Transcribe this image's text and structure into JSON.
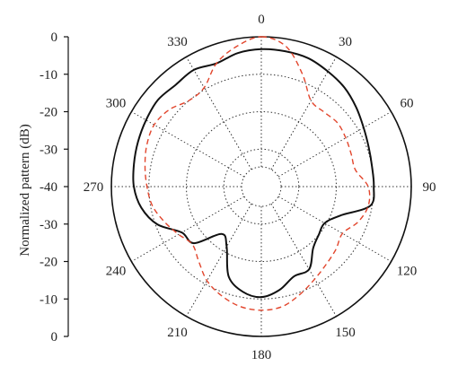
{
  "chart_data": {
    "type": "polar",
    "ylabel": "Normalized pattern (dB)",
    "r_ticks": [
      "0",
      "-10",
      "-20",
      "-30",
      "-40",
      "-30",
      "-20",
      "-10",
      "0"
    ],
    "angle_ticks": [
      "0",
      "30",
      "60",
      "90",
      "120",
      "150",
      "180",
      "210",
      "240",
      "270",
      "300",
      "330"
    ],
    "r_range_db": [
      -40,
      0
    ],
    "grid": true,
    "series": [
      {
        "color": "#111111",
        "dash": "solid",
        "points_deg_db": [
          [
            0,
            -3.3
          ],
          [
            10,
            -3.3
          ],
          [
            20,
            -3.5
          ],
          [
            30,
            -4.5
          ],
          [
            40,
            -5.5
          ],
          [
            50,
            -7.0
          ],
          [
            60,
            -8.5
          ],
          [
            70,
            -9.5
          ],
          [
            80,
            -10.0
          ],
          [
            90,
            -10.0
          ],
          [
            100,
            -10.5
          ],
          [
            110,
            -17.5
          ],
          [
            120,
            -20.5
          ],
          [
            130,
            -20.0
          ],
          [
            140,
            -18.5
          ],
          [
            150,
            -14.5
          ],
          [
            160,
            -14.5
          ],
          [
            170,
            -12.0
          ],
          [
            180,
            -10.5
          ],
          [
            190,
            -11.5
          ],
          [
            200,
            -14.5
          ],
          [
            210,
            -21.5
          ],
          [
            220,
            -23.5
          ],
          [
            230,
            -16.5
          ],
          [
            240,
            -15.5
          ],
          [
            250,
            -10.5
          ],
          [
            260,
            -7.5
          ],
          [
            270,
            -6.0
          ],
          [
            280,
            -5.5
          ],
          [
            290,
            -5.0
          ],
          [
            300,
            -4.5
          ],
          [
            310,
            -4.0
          ],
          [
            320,
            -4.5
          ],
          [
            330,
            -4.0
          ],
          [
            340,
            -5.0
          ],
          [
            350,
            -3.8
          ]
        ]
      },
      {
        "color": "#e2452c",
        "dash": "dashed",
        "points_deg_db": [
          [
            0,
            0.0
          ],
          [
            10,
            -2.0
          ],
          [
            20,
            -8.0
          ],
          [
            30,
            -13.5
          ],
          [
            40,
            -14.0
          ],
          [
            50,
            -13.5
          ],
          [
            60,
            -14.0
          ],
          [
            70,
            -14.5
          ],
          [
            80,
            -14.5
          ],
          [
            90,
            -11.5
          ],
          [
            100,
            -11.0
          ],
          [
            110,
            -12.5
          ],
          [
            120,
            -15.0
          ],
          [
            130,
            -14.0
          ],
          [
            140,
            -13.0
          ],
          [
            150,
            -11.5
          ],
          [
            160,
            -9.5
          ],
          [
            170,
            -7.5
          ],
          [
            180,
            -7.0
          ],
          [
            190,
            -7.5
          ],
          [
            200,
            -9.0
          ],
          [
            210,
            -11.0
          ],
          [
            220,
            -14.0
          ],
          [
            230,
            -16.0
          ],
          [
            240,
            -14.5
          ],
          [
            250,
            -12.5
          ],
          [
            260,
            -10.5
          ],
          [
            270,
            -9.5
          ],
          [
            280,
            -8.5
          ],
          [
            290,
            -7.5
          ],
          [
            300,
            -7.0
          ],
          [
            310,
            -8.0
          ],
          [
            320,
            -10.0
          ],
          [
            330,
            -9.5
          ],
          [
            340,
            -5.0
          ],
          [
            350,
            -2.0
          ]
        ]
      }
    ]
  }
}
